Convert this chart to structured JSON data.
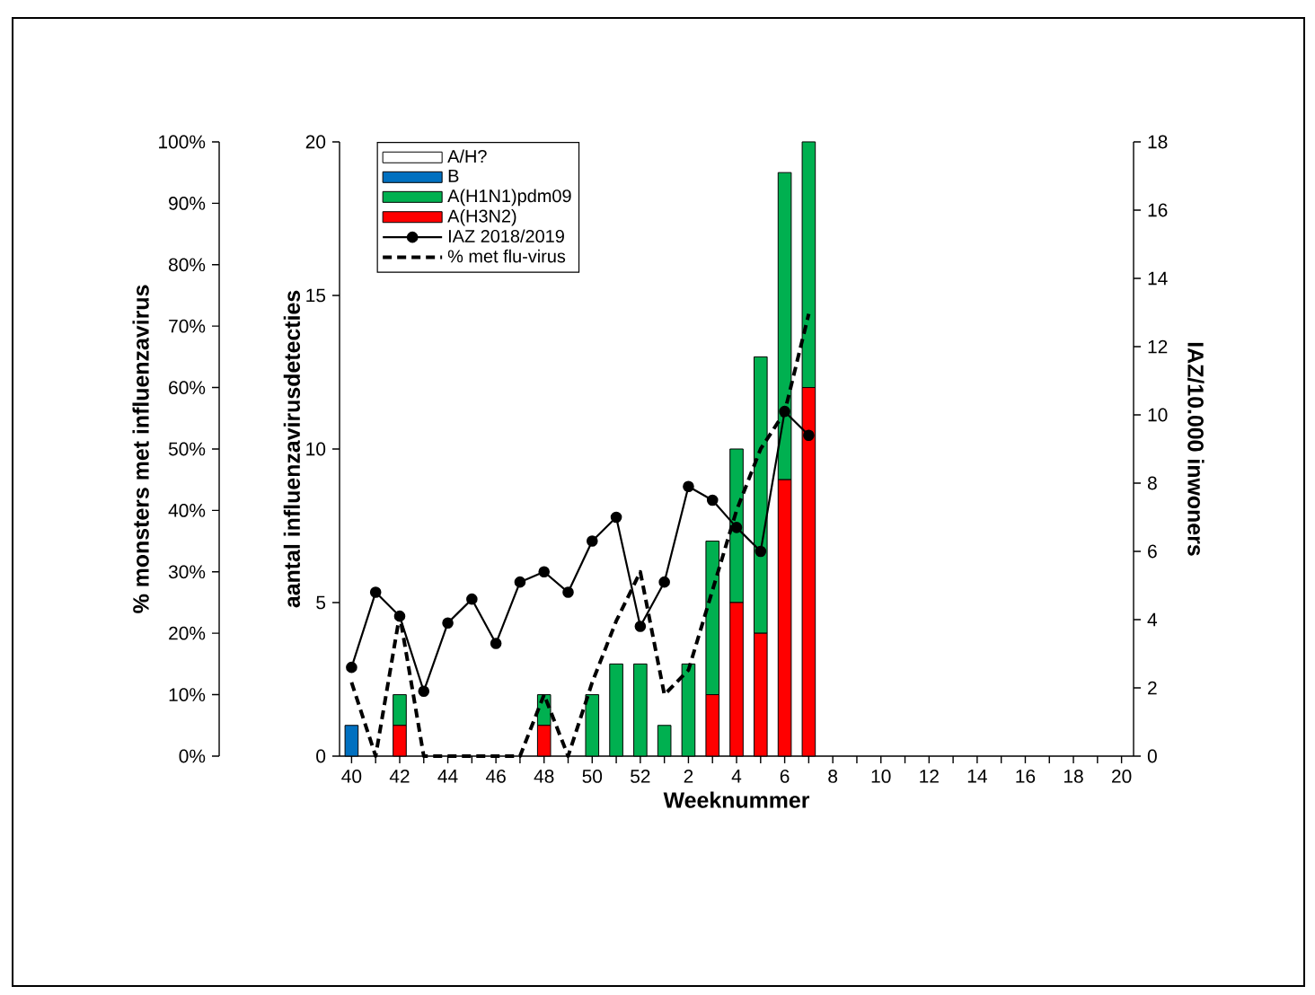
{
  "chart_data": {
    "type": "bar",
    "stacked": true,
    "legend": "top left",
    "xlabel": "Weeknummer",
    "ylabel": "aantal influenzavirusdetecties",
    "y2label": "IAZ/10.000 inwoners",
    "y3label": "% monsters met influenzavirus",
    "categories": [
      "40",
      null,
      "42",
      null,
      "44",
      null,
      "46",
      null,
      "48",
      null,
      "50",
      null,
      "52",
      null,
      "2",
      null,
      "4",
      null,
      "6",
      null,
      "8",
      null,
      "10",
      null,
      "12",
      null,
      "14",
      null,
      "16",
      null,
      "18",
      null,
      "20"
    ],
    "ylim": [
      0,
      20
    ],
    "yticks": [
      0,
      5,
      10,
      15,
      20
    ],
    "y2lim": [
      0,
      18
    ],
    "y2ticks": [
      0,
      2,
      4,
      6,
      8,
      10,
      12,
      14,
      16,
      18
    ],
    "y3lim": [
      0,
      100
    ],
    "y3ticks": [
      {
        "value": 0,
        "label": "0%"
      },
      {
        "value": 10,
        "label": "10%"
      },
      {
        "value": 20,
        "label": "20%"
      },
      {
        "value": 30,
        "label": "30%"
      },
      {
        "value": 40,
        "label": "40%"
      },
      {
        "value": 50,
        "label": "50%"
      },
      {
        "value": 60,
        "label": "60%"
      },
      {
        "value": 70,
        "label": "70%"
      },
      {
        "value": 80,
        "label": "80%"
      },
      {
        "value": 90,
        "label": "90%"
      },
      {
        "value": 100,
        "label": "100%"
      }
    ],
    "series": [
      {
        "name": "A(H3N2)",
        "color": "#ff0000",
        "values": [
          0,
          0,
          1,
          0,
          0,
          0,
          0,
          0,
          1,
          0,
          0,
          0,
          0,
          0,
          0,
          2,
          5,
          4,
          9,
          12,
          null,
          null,
          null,
          null,
          null,
          null,
          null,
          null,
          null,
          null,
          null,
          null,
          null
        ]
      },
      {
        "name": "A(H1N1)pdm09",
        "color": "#00b050",
        "values": [
          0,
          0,
          1,
          0,
          0,
          0,
          0,
          0,
          1,
          0,
          2,
          3,
          3,
          1,
          3,
          5,
          5,
          9,
          10,
          8,
          null,
          null,
          null,
          null,
          null,
          null,
          null,
          null,
          null,
          null,
          null,
          null,
          null
        ]
      },
      {
        "name": "B",
        "color": "#0070c0",
        "values": [
          1,
          0,
          0,
          0,
          0,
          0,
          0,
          0,
          0,
          0,
          0,
          0,
          0,
          0,
          0,
          0,
          0,
          0,
          0,
          0,
          null,
          null,
          null,
          null,
          null,
          null,
          null,
          null,
          null,
          null,
          null,
          null,
          null
        ]
      },
      {
        "name": "A/H?",
        "color": "#ffffff",
        "values": [
          0,
          0,
          0,
          0,
          0,
          0,
          0,
          0,
          0,
          0,
          0,
          0,
          0,
          0,
          0,
          0,
          0,
          0,
          0,
          0,
          null,
          null,
          null,
          null,
          null,
          null,
          null,
          null,
          null,
          null,
          null,
          null,
          null
        ]
      },
      {
        "name": "IAZ 2018/2019",
        "type": "line",
        "axis": "y2",
        "color": "#000000",
        "marker": "circle",
        "line_style": "solid",
        "values": [
          2.6,
          4.8,
          4.1,
          1.9,
          3.9,
          4.6,
          3.3,
          5.1,
          5.4,
          4.8,
          6.3,
          7.0,
          3.8,
          5.1,
          7.9,
          7.5,
          6.7,
          6.0,
          10.1,
          9.4,
          null,
          null,
          null,
          null,
          null,
          null,
          null,
          null,
          null,
          null,
          null,
          null,
          null
        ]
      },
      {
        "name": "% met flu-virus",
        "type": "line",
        "axis": "y3",
        "color": "#000000",
        "marker": "none",
        "line_style": "dashed",
        "values": [
          12,
          0,
          23,
          0,
          0,
          0,
          0,
          0,
          10,
          0,
          12,
          22,
          30,
          10,
          14,
          27,
          40,
          50,
          56,
          72,
          null,
          null,
          null,
          null,
          null,
          null,
          null,
          null,
          null,
          null,
          null,
          null,
          null
        ]
      }
    ]
  }
}
